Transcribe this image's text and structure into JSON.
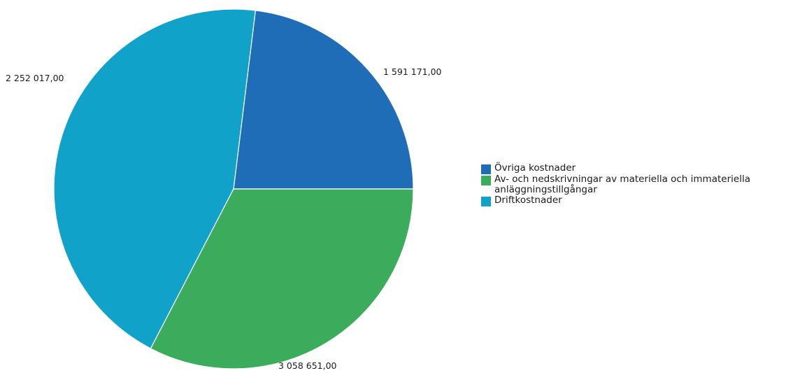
{
  "chart_data": {
    "type": "pie",
    "title": "",
    "slices": [
      {
        "label": "Övriga kostnader",
        "value": 1591171.0,
        "display": "1 591 171,00",
        "color": "#1f6db6"
      },
      {
        "label": "Driftkostnader",
        "value": 3058651.0,
        "display": "3 058 651,00",
        "color": "#10a2c9"
      },
      {
        "label": "Av- och nedskrivningar av materiella och immateriella anläggningstillgångar",
        "value": 2252017.0,
        "display": "2 252 017,00",
        "color": "#3aac5c"
      }
    ],
    "legend": {
      "position": "right",
      "items": [
        {
          "label": "Övriga kostnader",
          "color": "#1f6db6"
        },
        {
          "label": "Av- och nedskrivningar av materiella och immateriella anläggningstillgångar",
          "color": "#3aac5c"
        },
        {
          "label": "Driftkostnader",
          "color": "#10a2c9"
        }
      ]
    }
  }
}
